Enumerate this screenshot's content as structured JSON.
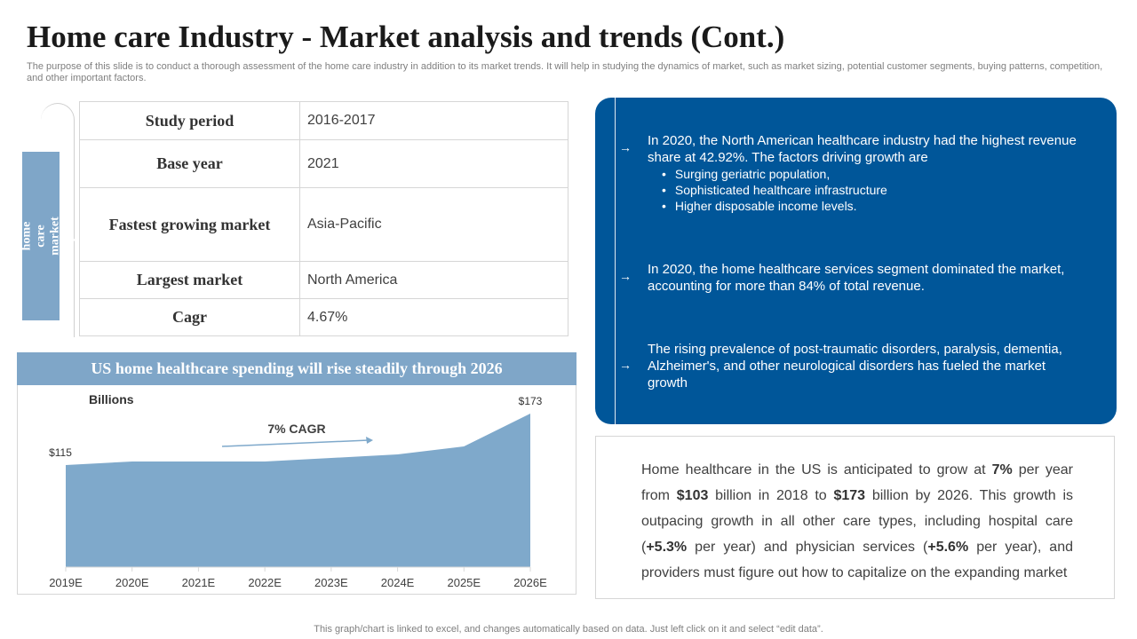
{
  "title": "Home care Industry - Market analysis and trends (Cont.)",
  "subtitle": "The purpose of this slide is to conduct a thorough assessment of the home care industry in addition to its market trends. It will help in studying the dynamics of market, such as market sizing, potential customer segments, buying patterns, competition, and other important factors.",
  "side_label": "Global home care market snapshot",
  "snapshot": [
    {
      "key": "Study period",
      "value": "2016-2017"
    },
    {
      "key": "Base year",
      "value": "2021"
    },
    {
      "key": "Fastest growing market",
      "value": "Asia-Pacific"
    },
    {
      "key": "Largest market",
      "value": "North America"
    },
    {
      "key": "Cagr",
      "value": "4.67%"
    }
  ],
  "chart_banner": "US home healthcare spending will rise steadily through 2026",
  "chart_data": {
    "type": "area",
    "title": "US home healthcare spending will rise steadily through 2026",
    "ylabel": "Billions",
    "categories": [
      "2019E",
      "2020E",
      "2021E",
      "2022E",
      "2023E",
      "2024E",
      "2025E",
      "2026E"
    ],
    "values": [
      115,
      119,
      119,
      119,
      123,
      127,
      136,
      173
    ],
    "ylim": [
      0,
      180
    ],
    "data_labels": [
      {
        "category": "2019E",
        "text": "$115"
      },
      {
        "category": "2026E",
        "text": "$173"
      }
    ],
    "annotation": "7% CAGR",
    "color": "#7fa9cb"
  },
  "blue_panel": {
    "point1": {
      "text": "In 2020, the North American healthcare industry had the highest revenue share at 42.92%. The factors driving growth are",
      "bullets": [
        "Surging geriatric population,",
        "Sophisticated healthcare infrastructure",
        "Higher disposable income levels."
      ]
    },
    "point2": "In 2020, the home healthcare services segment dominated the market, accounting for more than 84% of total revenue.",
    "point3": "The rising prevalence of post-traumatic disorders, paralysis, dementia, Alzheimer's, and other neurological disorders has fueled the market growth",
    "color": "#005699"
  },
  "text_box": {
    "part1": "Home healthcare in the US is anticipated to grow at ",
    "bold1": "7%",
    "part2": " per year from ",
    "bold2": "$103",
    "part3": " billion in 2018 to ",
    "bold3": "$173",
    "part4": " billion by 2026. This growth is outpacing growth in all other care types, including hospital care (",
    "bold4": "+5.3%",
    "part5": " per year) and physician services (",
    "bold5": "+5.6%",
    "part6": " per year), and providers must figure out how to capitalize on the expanding market"
  },
  "footer": "This graph/chart is linked to excel, and changes automatically based on data. Just left click on it and select “edit data”."
}
